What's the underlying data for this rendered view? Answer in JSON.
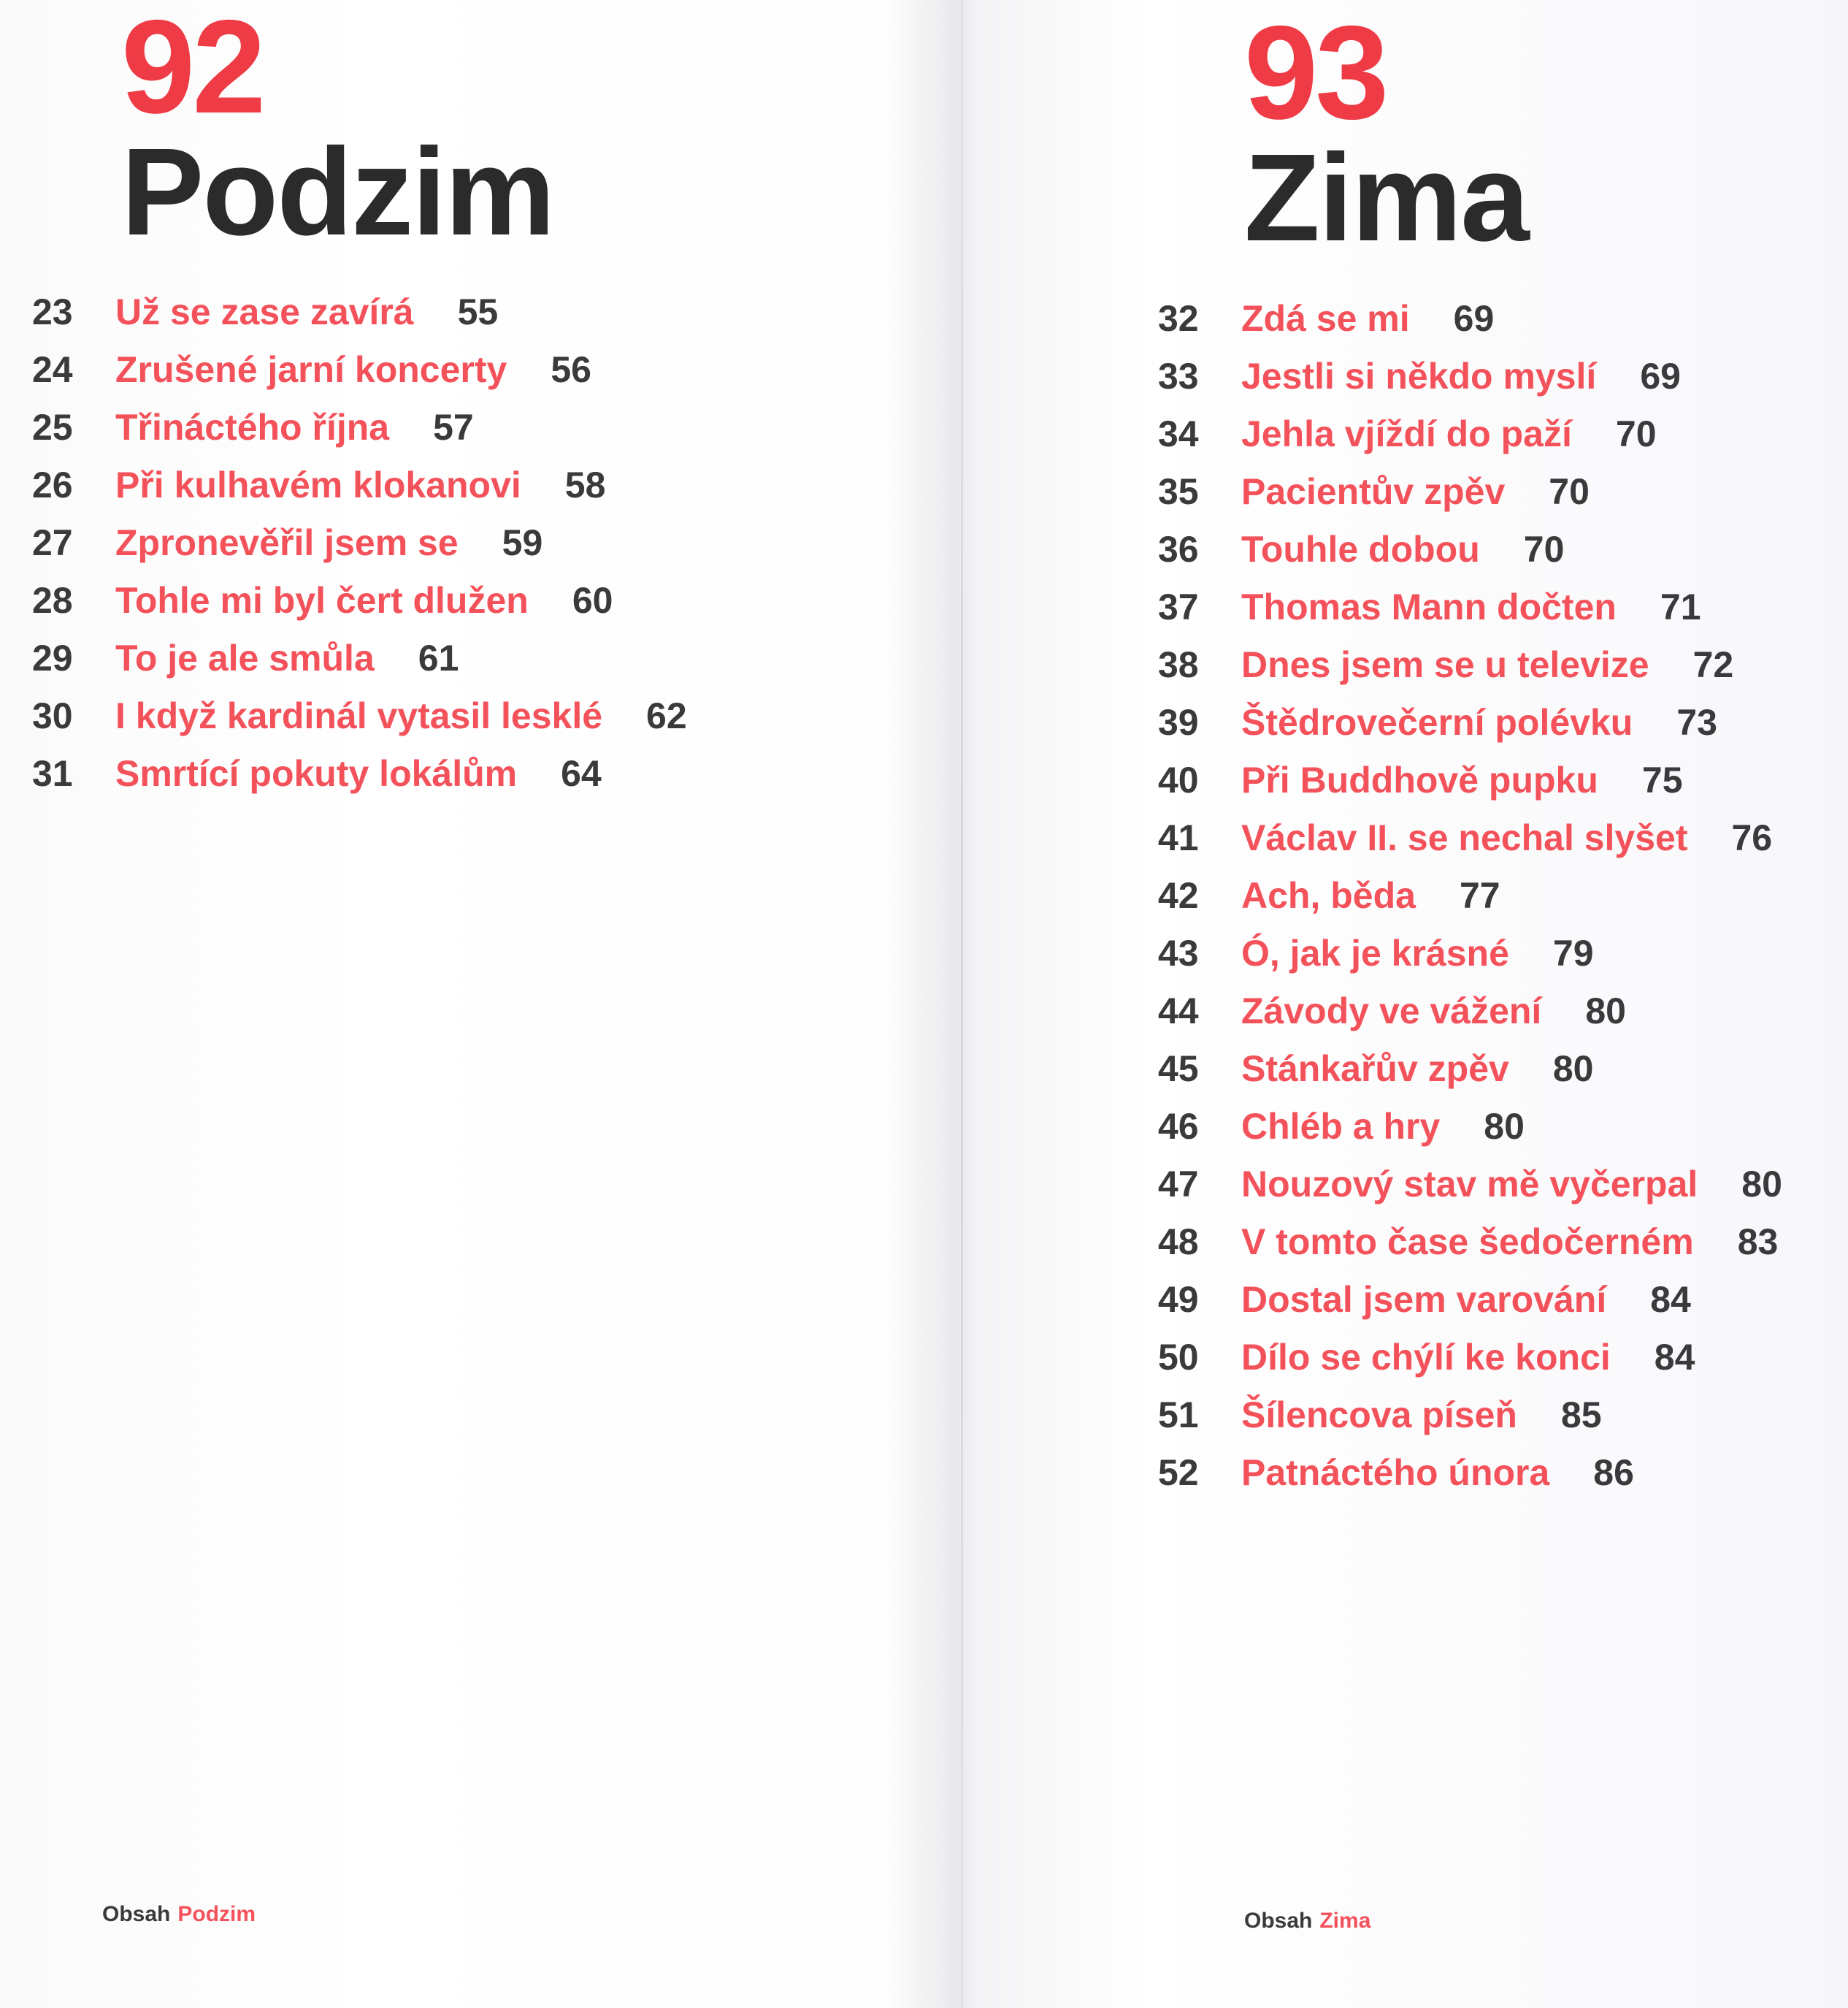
{
  "pages": [
    {
      "section_number": "92",
      "title": "Podzim",
      "entries": [
        {
          "number": "23",
          "title": "Už se zase zavírá",
          "page": "55"
        },
        {
          "number": "24",
          "title": "Zrušené jarní koncerty",
          "page": "56"
        },
        {
          "number": "25",
          "title": "Třináctého října",
          "page": "57"
        },
        {
          "number": "26",
          "title": "Při kulhavém klokanovi",
          "page": "58"
        },
        {
          "number": "27",
          "title": "Zpronevěřil jsem se",
          "page": "59"
        },
        {
          "number": "28",
          "title": "Tohle mi byl čert dlužen",
          "page": "60"
        },
        {
          "number": "29",
          "title": "To je ale smůla",
          "page": "61"
        },
        {
          "number": "30",
          "title": "I když kardinál vytasil lesklé",
          "page": "62"
        },
        {
          "number": "31",
          "title": "Smrtící pokuty lokálům",
          "page": "64"
        }
      ],
      "footer": {
        "label": "Obsah",
        "section": "Podzim"
      }
    },
    {
      "section_number": "93",
      "title": "Zima",
      "entries": [
        {
          "number": "32",
          "title": "Zdá se mi",
          "page": "69"
        },
        {
          "number": "33",
          "title": "Jestli si někdo myslí",
          "page": "69"
        },
        {
          "number": "34",
          "title": "Jehla vjíždí do paží",
          "page": "70"
        },
        {
          "number": "35",
          "title": "Pacientův zpěv",
          "page": "70"
        },
        {
          "number": "36",
          "title": "Touhle dobou",
          "page": "70"
        },
        {
          "number": "37",
          "title": "Thomas Mann dočten",
          "page": "71"
        },
        {
          "number": "38",
          "title": "Dnes jsem se u televize",
          "page": "72"
        },
        {
          "number": "39",
          "title": "Štědrovečerní polévku",
          "page": "73"
        },
        {
          "number": "40",
          "title": "Při Buddhově pupku",
          "page": "75"
        },
        {
          "number": "41",
          "title": "Václav II. se nechal slyšet",
          "page": "76"
        },
        {
          "number": "42",
          "title": "Ach, běda",
          "page": "77"
        },
        {
          "number": "43",
          "title": "Ó, jak je krásné",
          "page": "79"
        },
        {
          "number": "44",
          "title": "Závody ve vážení",
          "page": "80"
        },
        {
          "number": "45",
          "title": "Stánkařův zpěv",
          "page": "80"
        },
        {
          "number": "46",
          "title": "Chléb a hry",
          "page": "80"
        },
        {
          "number": "47",
          "title": "Nouzový stav mě vyčerpal",
          "page": "80"
        },
        {
          "number": "48",
          "title": "V tomto čase šedočerném",
          "page": "83"
        },
        {
          "number": "49",
          "title": "Dostal jsem varování",
          "page": "84"
        },
        {
          "number": "50",
          "title": "Dílo se chýlí ke konci",
          "page": "84"
        },
        {
          "number": "51",
          "title": "Šílencova píseň",
          "page": "85"
        },
        {
          "number": "52",
          "title": "Patnáctého února",
          "page": "86"
        }
      ],
      "footer": {
        "label": "Obsah",
        "section": "Zima"
      }
    }
  ]
}
